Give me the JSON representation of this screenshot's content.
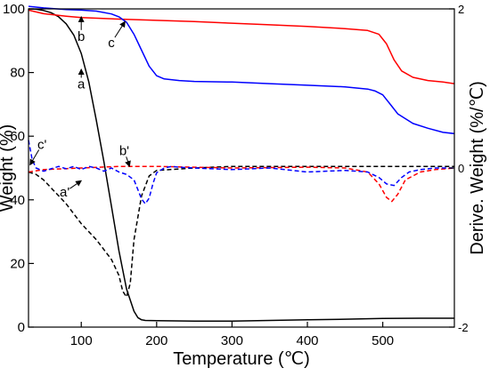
{
  "chart_data": {
    "type": "line",
    "xlabel": "Temperature (℃)",
    "ylabel_left": "Weight (%)",
    "ylabel_right": "Derive. Weight (%/℃)",
    "xlim": [
      30,
      595
    ],
    "ylim_left": [
      0,
      100
    ],
    "ylim_right": [
      -2,
      2
    ],
    "x_ticks": [
      100,
      200,
      300,
      400,
      500
    ],
    "y_ticks_left": [
      0,
      20,
      40,
      60,
      80,
      100
    ],
    "y_ticks_right": [
      -2,
      0,
      2
    ],
    "grid": false,
    "series": [
      {
        "name": "a",
        "axis": "left",
        "style": "solid",
        "color": "#000000",
        "x": [
          30,
          40,
          50,
          60,
          70,
          80,
          90,
          100,
          110,
          120,
          130,
          140,
          150,
          160,
          170,
          175,
          180,
          185,
          200,
          250,
          300,
          350,
          400,
          450,
          500,
          550,
          595
        ],
        "y": [
          100,
          99.9,
          99.5,
          98.8,
          97.5,
          95.3,
          91.8,
          86,
          77,
          65,
          52,
          38,
          24,
          12,
          5,
          3,
          2.3,
          2.1,
          2.0,
          1.9,
          1.9,
          2.1,
          2.3,
          2.5,
          2.7,
          2.8,
          2.8
        ]
      },
      {
        "name": "b",
        "axis": "left",
        "style": "solid",
        "color": "#ff0000",
        "x": [
          30,
          50,
          80,
          100,
          150,
          200,
          250,
          300,
          350,
          400,
          450,
          480,
          495,
          505,
          515,
          525,
          540,
          560,
          580,
          595
        ],
        "y": [
          99.6,
          98.5,
          97.7,
          97.3,
          96.8,
          96.4,
          96,
          95.5,
          95,
          94.5,
          93.8,
          93.2,
          92,
          89,
          84,
          80.5,
          78.5,
          77.5,
          77,
          76.5
        ]
      },
      {
        "name": "c",
        "axis": "left",
        "style": "solid",
        "color": "#0000ff",
        "x": [
          30,
          50,
          80,
          100,
          120,
          140,
          150,
          160,
          170,
          180,
          190,
          200,
          210,
          230,
          250,
          300,
          350,
          400,
          450,
          480,
          490,
          500,
          510,
          520,
          530,
          540,
          560,
          580,
          595
        ],
        "y": [
          100.8,
          100.3,
          99.8,
          99.6,
          99.3,
          98.4,
          97.5,
          95.8,
          92,
          87,
          82,
          79,
          78,
          77.5,
          77.2,
          77,
          76.5,
          76,
          75.5,
          74.8,
          74.2,
          73,
          70,
          67,
          65.5,
          64,
          62.5,
          61.2,
          60.8
        ]
      },
      {
        "name": "a'",
        "axis": "right",
        "style": "dashed",
        "color": "#000000",
        "x": [
          30,
          40,
          50,
          60,
          80,
          100,
          120,
          140,
          150,
          155,
          160,
          165,
          170,
          180,
          190,
          200,
          250,
          300,
          400,
          500,
          595
        ],
        "y": [
          -0.05,
          -0.08,
          -0.15,
          -0.25,
          -0.45,
          -0.7,
          -0.9,
          -1.15,
          -1.35,
          -1.55,
          -1.62,
          -1.45,
          -0.9,
          -0.35,
          -0.1,
          -0.03,
          0,
          0.02,
          0.02,
          0.02,
          0.02
        ]
      },
      {
        "name": "b'",
        "axis": "right",
        "style": "dashed",
        "color": "#ff0000",
        "x": [
          30,
          50,
          100,
          150,
          200,
          250,
          300,
          400,
          450,
          480,
          495,
          505,
          512,
          520,
          530,
          550,
          570,
          595
        ],
        "y": [
          -0.05,
          -0.02,
          0,
          0.02,
          0.02,
          0.01,
          0,
          0.01,
          0,
          -0.05,
          -0.2,
          -0.37,
          -0.42,
          -0.33,
          -0.15,
          -0.05,
          -0.02,
          0
        ]
      },
      {
        "name": "c'",
        "axis": "right",
        "style": "dashed",
        "color": "#0000ff",
        "x": [
          30,
          35,
          40,
          50,
          60,
          70,
          80,
          90,
          100,
          110,
          120,
          130,
          140,
          150,
          160,
          170,
          175,
          180,
          185,
          190,
          195,
          200,
          210,
          220,
          230,
          250,
          300,
          350,
          400,
          450,
          480,
          495,
          505,
          515,
          525,
          535,
          550,
          570,
          595
        ],
        "y": [
          0.35,
          0.1,
          0,
          -0.04,
          -0.01,
          0.02,
          -0.01,
          0.02,
          -0.02,
          0.02,
          0,
          -0.04,
          0,
          -0.05,
          -0.08,
          -0.15,
          -0.27,
          -0.39,
          -0.45,
          -0.38,
          -0.2,
          -0.06,
          0,
          0.02,
          0.01,
          0,
          -0.02,
          0,
          -0.05,
          -0.03,
          -0.05,
          -0.12,
          -0.2,
          -0.22,
          -0.12,
          -0.05,
          -0.02,
          0,
          0
        ]
      }
    ],
    "annotations": [
      {
        "text": "a",
        "x_data": 100,
        "y_data": 75,
        "axis": "left"
      },
      {
        "text": "b",
        "x_data": 100,
        "y_data": 90,
        "axis": "left"
      },
      {
        "text": "c",
        "x_data": 140,
        "y_data": 88,
        "axis": "left"
      },
      {
        "text": "a'",
        "x_data": 78,
        "y_data": 41,
        "axis": "left"
      },
      {
        "text": "b'",
        "x_data": 157,
        "y_data": 54,
        "axis": "left"
      },
      {
        "text": "c'",
        "x_data": 48,
        "y_data": 56,
        "axis": "left"
      }
    ]
  }
}
